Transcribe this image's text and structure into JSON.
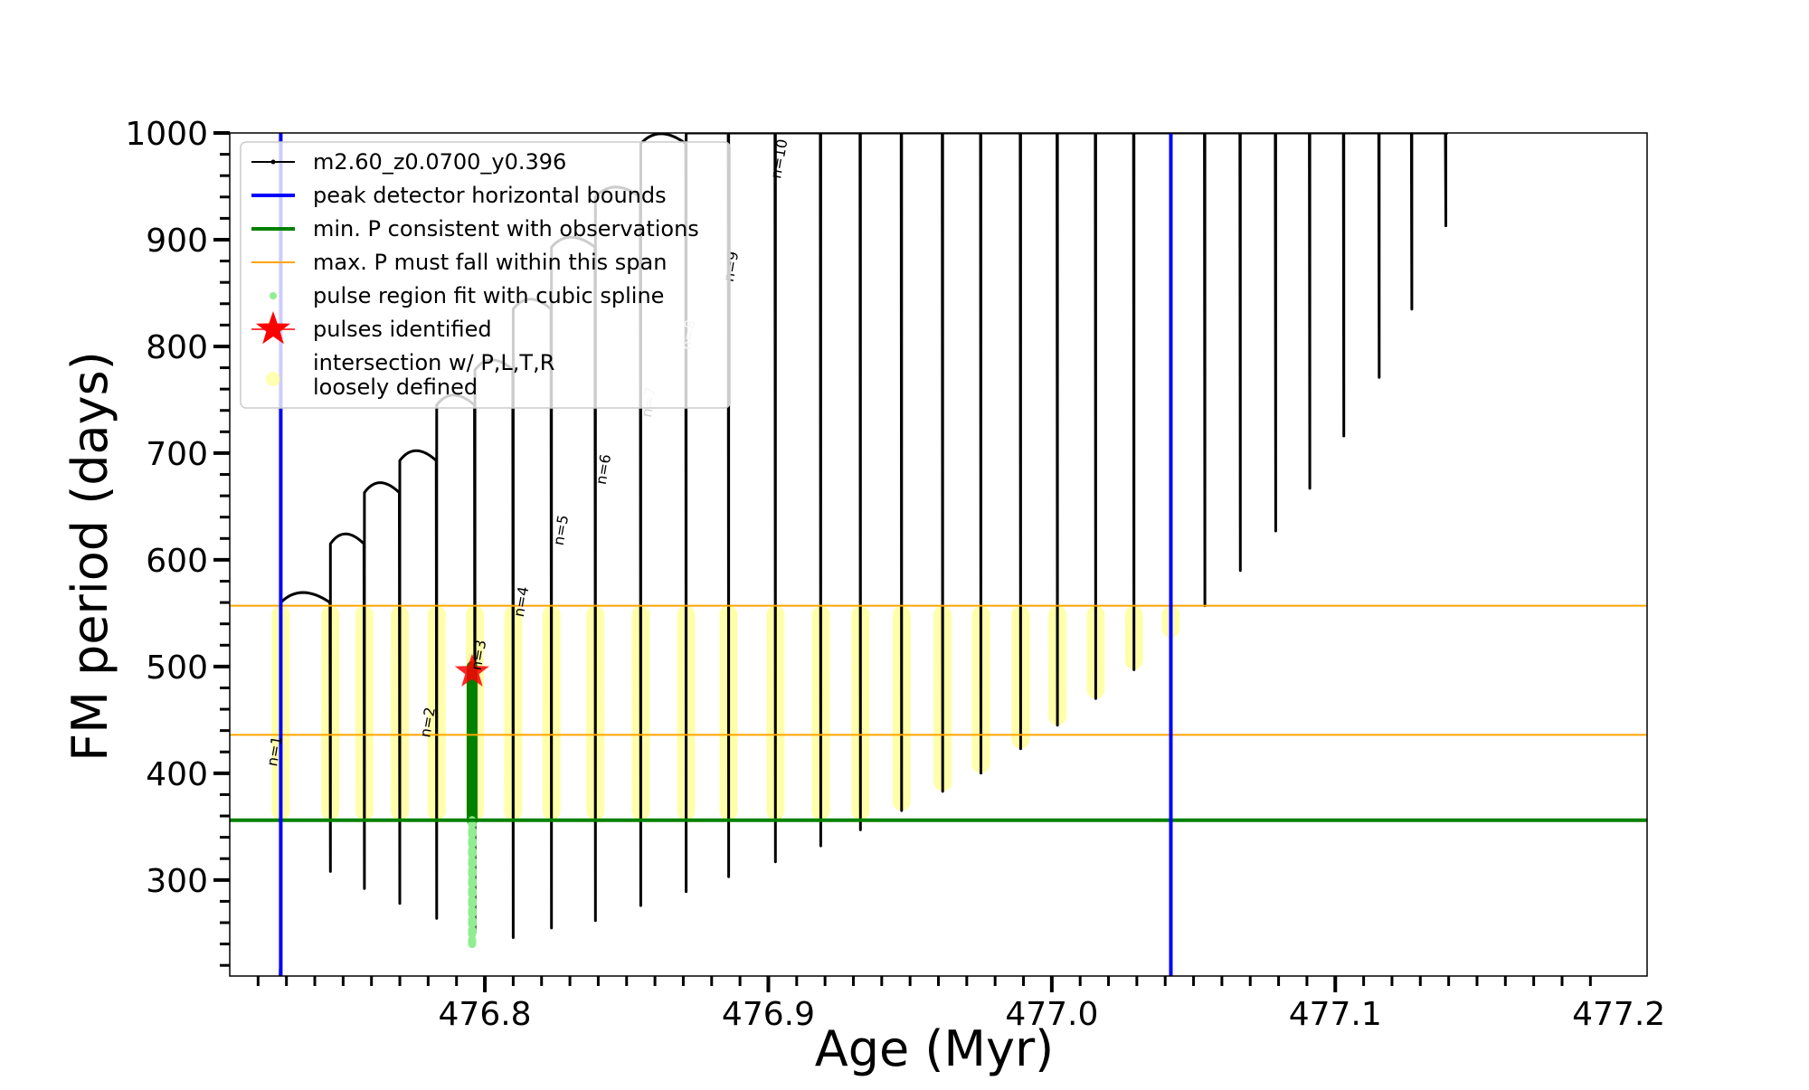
{
  "chart_data": {
    "type": "line",
    "xlabel": "Age (Myr)",
    "ylabel": "FM period (days)",
    "xlim": [
      476.71,
      477.21
    ],
    "ylim": [
      210,
      1000
    ],
    "xticks": [
      476.8,
      476.9,
      477.0,
      477.1,
      477.2
    ],
    "xtick_labels": [
      "476.8",
      "476.9",
      "477.0",
      "477.1",
      "477.2"
    ],
    "yticks": [
      300,
      400,
      500,
      600,
      700,
      800,
      900,
      1000
    ],
    "ytick_labels": [
      "300",
      "400",
      "500",
      "600",
      "700",
      "800",
      "900",
      "1000"
    ],
    "track_name": "m2.60_z0.0700_y0.396",
    "colors": {
      "track": "#000000",
      "bounds": "#0000ff",
      "min_p": "#008000",
      "span": "#ffa500",
      "fit": "#90ee90",
      "pulse": "#ff0000",
      "loose": "#ffff66"
    },
    "peak_detector_bounds": [
      476.728,
      477.042
    ],
    "min_period_observed": 356,
    "max_period_span": [
      436,
      557
    ],
    "pulses": [
      {
        "label": "n=1",
        "age": 476.728,
        "min": 230,
        "peak": 560
      },
      {
        "label": "n=2",
        "age": 476.7455,
        "min": 308,
        "peak": 615
      },
      {
        "label": "n=3",
        "age": 476.7575,
        "min": 292,
        "peak": 663
      },
      {
        "label": "n=4",
        "age": 476.77,
        "min": 278,
        "peak": 693
      },
      {
        "label": "n=5",
        "age": 476.783,
        "min": 264,
        "peak": 745
      },
      {
        "label": "n=6",
        "age": 476.7965,
        "min": 250,
        "peak": 778
      },
      {
        "label": "n=7",
        "age": 476.81,
        "min": 246,
        "peak": 835
      },
      {
        "label": "n=8",
        "age": 476.8235,
        "min": 255,
        "peak": 893
      },
      {
        "label": "n=9",
        "age": 476.839,
        "min": 262,
        "peak": 940
      },
      {
        "label": "n=10",
        "age": 476.855,
        "min": 276,
        "peak": 990
      },
      {
        "label": "n=11",
        "age": 476.871,
        "min": 289,
        "peak": 1000
      },
      {
        "label": "n=12",
        "age": 476.886,
        "min": 303,
        "peak": 1000
      },
      {
        "label": "n=13",
        "age": 476.9025,
        "min": 317,
        "peak": 1000
      },
      {
        "label": "n=14",
        "age": 476.9185,
        "min": 332,
        "peak": 1000
      },
      {
        "label": "n=15",
        "age": 476.9325,
        "min": 347,
        "peak": 1000
      },
      {
        "label": "n=16",
        "age": 476.947,
        "min": 365,
        "peak": 1000
      },
      {
        "label": "n=17",
        "age": 476.9615,
        "min": 383,
        "peak": 1000
      },
      {
        "label": "n=18",
        "age": 476.975,
        "min": 400,
        "peak": 1000
      },
      {
        "label": "n=19",
        "age": 476.989,
        "min": 423,
        "peak": 1000
      },
      {
        "label": "n=20",
        "age": 477.002,
        "min": 445,
        "peak": 1000
      },
      {
        "label": "n=21",
        "age": 477.0155,
        "min": 470,
        "peak": 1000
      },
      {
        "label": "n=22",
        "age": 477.029,
        "min": 497,
        "peak": 1000
      },
      {
        "label": "n=23",
        "age": 477.042,
        "min": 527,
        "peak": 1000
      },
      {
        "label": "n=24",
        "age": 477.054,
        "min": 557,
        "peak": 1000
      },
      {
        "label": "n=25",
        "age": 477.0665,
        "min": 590,
        "peak": 1000
      },
      {
        "label": "n=26",
        "age": 477.079,
        "min": 627,
        "peak": 1000
      },
      {
        "label": "n=27",
        "age": 477.091,
        "min": 667,
        "peak": 1000
      },
      {
        "label": "n=28",
        "age": 477.103,
        "min": 716,
        "peak": 1000
      },
      {
        "label": "n=29",
        "age": 477.1155,
        "min": 771,
        "peak": 1000
      },
      {
        "label": "n=30",
        "age": 477.127,
        "min": 835,
        "peak": 1000
      },
      {
        "label": "n=31",
        "age": 477.139,
        "min": 913,
        "peak": 1000
      }
    ],
    "pulse_labels": [
      {
        "text": "n=1",
        "age": 476.7275,
        "period": 420,
        "faint": false
      },
      {
        "text": "n=2",
        "age": 476.7815,
        "period": 447,
        "faint": false
      },
      {
        "text": "n=3",
        "age": 476.7995,
        "period": 510,
        "faint": false
      },
      {
        "text": "n=4",
        "age": 476.8145,
        "period": 560,
        "faint": false
      },
      {
        "text": "n=5",
        "age": 476.8285,
        "period": 627,
        "faint": false
      },
      {
        "text": "n=6",
        "age": 476.8435,
        "period": 684,
        "faint": false
      },
      {
        "text": "n=7",
        "age": 476.8595,
        "period": 747,
        "faint": true
      },
      {
        "text": "n=8",
        "age": 476.8735,
        "period": 810,
        "faint": true
      },
      {
        "text": "n=9",
        "age": 476.8885,
        "period": 874,
        "faint": false
      },
      {
        "text": "n=10",
        "age": 476.9055,
        "period": 975,
        "faint": false
      }
    ],
    "pulse_fit": {
      "age": 476.7955,
      "from": 240,
      "to": 500
    },
    "pulse_identified": {
      "age": 476.7955,
      "period": 495
    },
    "loosely_defined_band": [
      356,
      557
    ],
    "legend": {
      "placement": "upper-left",
      "entries": [
        "m2.60_z0.0700_y0.396",
        "peak detector horizontal bounds",
        "min. P consistent with observations",
        "max. P must fall within this span",
        "pulse region fit with cubic spline",
        "pulses identified",
        "intersection w/ P,L,T,R",
        "loosely defined"
      ]
    }
  }
}
